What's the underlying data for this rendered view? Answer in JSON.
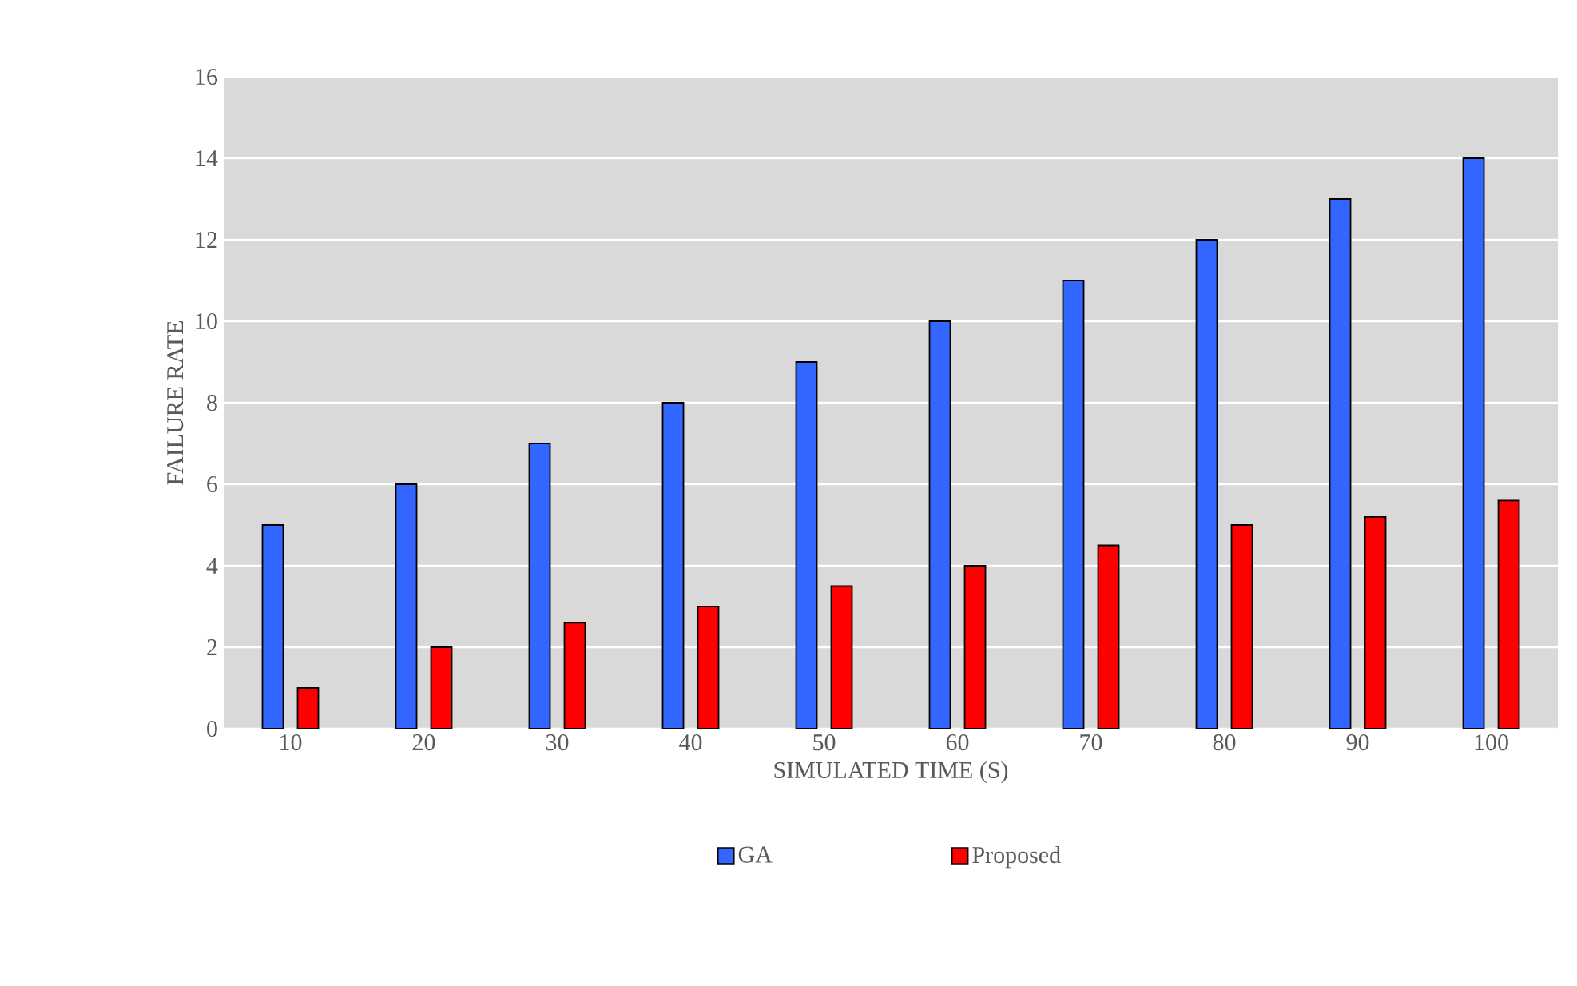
{
  "chart_data": {
    "type": "bar",
    "xlabel": "SIMULATED TIME (S)",
    "ylabel": "FAILURE RATE",
    "categories": [
      "10",
      "20",
      "30",
      "40",
      "50",
      "60",
      "70",
      "80",
      "90",
      "100"
    ],
    "series": [
      {
        "name": "GA",
        "color": "#3366ff",
        "values": [
          5,
          6,
          7,
          8,
          9,
          10,
          11,
          12,
          13,
          14
        ]
      },
      {
        "name": "Proposed",
        "color": "#ff0000",
        "values": [
          1,
          2,
          2.6,
          3,
          3.5,
          4,
          4.5,
          5,
          5.2,
          5.6
        ]
      }
    ],
    "ylim": [
      0,
      16
    ],
    "yticks": [
      0,
      2,
      4,
      6,
      8,
      10,
      12,
      14,
      16
    ],
    "grid": "y",
    "legend": "bottom"
  }
}
